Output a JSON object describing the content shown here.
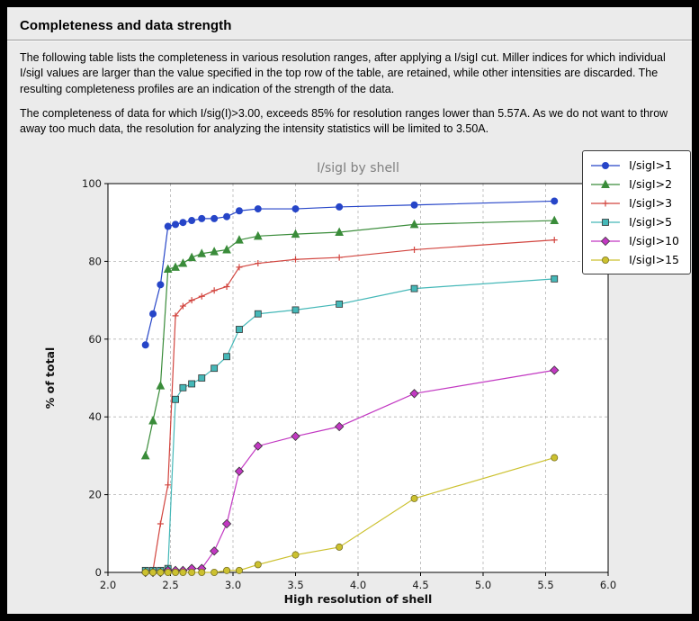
{
  "window": {
    "frame_color": "#000000",
    "page_bg": "#ebebeb"
  },
  "header": {
    "title": "Completeness and data strength"
  },
  "paragraphs": {
    "intro": "The following table lists the completeness in various resolution ranges, after applying a I/sigI cut. Miller indices for which individual I/sigI values are larger than the value specified in the top row of the table, are retained, while other intensities are discarded. The resulting completeness profiles are an indication of the strength of the data.",
    "note": "The completeness of data for which I/sig(I)>3.00, exceeds 85% for resolution ranges lower than 5.57A. As we do not want to throw away too much data, the resolution for analyzing the intensity statistics will be limited to 3.50A."
  },
  "chart_data": {
    "type": "line",
    "title": "I/sigI by shell",
    "title_color": "#808080",
    "xlabel": "High resolution of shell",
    "ylabel": "% of total",
    "xlim": [
      2.0,
      6.0
    ],
    "ylim": [
      0,
      100
    ],
    "xticks": [
      2.0,
      2.5,
      3.0,
      3.5,
      4.0,
      4.5,
      5.0,
      5.5,
      6.0
    ],
    "yticks": [
      0,
      20,
      40,
      60,
      80,
      100
    ],
    "grid": true,
    "grid_style": "dashed",
    "grid_color": "#b4b4b4",
    "plot_bg": "#ffffff",
    "legend_position": "upper-right",
    "x": [
      2.3,
      2.36,
      2.42,
      2.48,
      2.54,
      2.6,
      2.67,
      2.75,
      2.85,
      2.95,
      3.05,
      3.2,
      3.5,
      3.85,
      4.45,
      5.57
    ],
    "series": [
      {
        "name": "I/sigI>1",
        "color": "#2645c8",
        "edge": "#2645c8",
        "marker": "circle",
        "values": [
          58.5,
          66.5,
          74.0,
          89.0,
          89.5,
          90.0,
          90.5,
          91.0,
          91.0,
          91.5,
          93.0,
          93.5,
          93.5,
          94.0,
          94.5,
          95.5
        ]
      },
      {
        "name": "I/sigI>2",
        "color": "#3a8c3a",
        "edge": "#3a8c3a",
        "marker": "triangle",
        "values": [
          30.0,
          39.0,
          48.0,
          78.0,
          78.5,
          79.5,
          81.0,
          82.0,
          82.5,
          83.0,
          85.5,
          86.5,
          87.0,
          87.5,
          89.5,
          90.5
        ]
      },
      {
        "name": "I/sigI>3",
        "color": "#d2453f",
        "edge": "#d2453f",
        "marker": "plus",
        "values": [
          0.0,
          0.5,
          12.5,
          22.5,
          66.0,
          68.5,
          70.0,
          71.0,
          72.5,
          73.5,
          78.5,
          79.5,
          80.5,
          81.0,
          83.0,
          85.5
        ]
      },
      {
        "name": "I/sigI>5",
        "color": "#45b8b8",
        "edge": "#333333",
        "marker": "square",
        "values": [
          0.5,
          0.5,
          0.5,
          1.0,
          44.5,
          47.5,
          48.5,
          50.0,
          52.5,
          55.5,
          62.5,
          66.5,
          67.5,
          69.0,
          73.0,
          75.5
        ]
      },
      {
        "name": "I/sigI>10",
        "color": "#c238c2",
        "edge": "#333333",
        "marker": "diamond",
        "values": [
          0.0,
          0.0,
          0.0,
          0.5,
          0.5,
          0.5,
          1.0,
          1.0,
          5.5,
          12.5,
          26.0,
          32.5,
          35.0,
          37.5,
          46.0,
          52.0
        ]
      },
      {
        "name": "I/sigI>15",
        "color": "#ccc12f",
        "edge": "#7a7326",
        "marker": "circle",
        "values": [
          0.0,
          0.0,
          0.0,
          0.0,
          0.0,
          0.0,
          0.0,
          0.0,
          0.0,
          0.5,
          0.5,
          2.0,
          4.5,
          6.5,
          19.0,
          29.5
        ]
      }
    ]
  }
}
